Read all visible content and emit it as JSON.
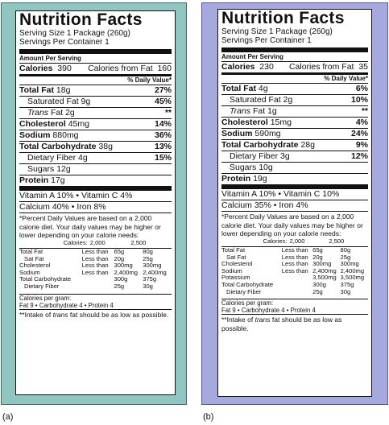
{
  "labels": [
    {
      "caption": "(a)",
      "title": "Nutrition Facts",
      "serving_size": "Serving Size 1 Package (260g)",
      "servings": "Servings Per Container 1",
      "amount_per_serving": "Amount Per Serving",
      "calories_label": "Calories",
      "calories": "390",
      "calories_fat_label": "Calories from Fat",
      "calories_fat": "160",
      "dv_header": "% Daily Value*",
      "nutrients": [
        {
          "name": "Total Fat",
          "amount": "18g",
          "dv": "27%"
        },
        {
          "name": "Saturated Fat",
          "amount": "9g",
          "dv": "45%"
        },
        {
          "name": "Trans",
          "suffix": "Fat",
          "amount": "2g",
          "dv": "**"
        },
        {
          "name": "Cholesterol",
          "amount": "45mg",
          "dv": "14%"
        },
        {
          "name": "Sodium",
          "amount": "880mg",
          "dv": "36%"
        },
        {
          "name": "Total Carbohydrate",
          "amount": "38g",
          "dv": "13%"
        },
        {
          "name": "Dietary Fiber",
          "amount": "4g",
          "dv": "15%"
        },
        {
          "name": "Sugars",
          "amount": "12g",
          "dv": ""
        },
        {
          "name": "Protein",
          "amount": "17g",
          "dv": ""
        }
      ],
      "vitamin_line": "Vitamin A  10%   •   Vitamin C  4%",
      "mineral_line": "Calcium  40%   •   Iron  8%",
      "footnote": "*Percent Daily Values are based on a 2,000 calorie diet. Your daily values may be higher or lower depending on your calorie needs:",
      "ref_header": [
        "",
        "Calories:",
        "2,000",
        "2,500"
      ],
      "ref_rows": [
        [
          "Total Fat",
          "Less than",
          "65g",
          "80g"
        ],
        [
          "Sat Fat",
          "Less than",
          "20g",
          "25g"
        ],
        [
          "Cholesterol",
          "Less than",
          "300mg",
          "300mg"
        ],
        [
          "Sodium",
          "Less than",
          "2,400mg",
          "2,400mg"
        ],
        [
          "Total Carbohydrate",
          "",
          "300g",
          "375g"
        ],
        [
          "Dietary Fiber",
          "",
          "25g",
          "30g"
        ]
      ],
      "cal_per_gram": "Calories per gram:",
      "cal_values": "Fat 9  •  Carbohydrate 4  •  Protein 4",
      "trans_note_a": "**Intake of",
      "trans_note_it": "trans",
      "trans_note_b": "fat should be as low as possible."
    },
    {
      "caption": "(b)",
      "title": "Nutrition Facts",
      "serving_size": "Serving Size 1 Package (260g)",
      "servings": "Servings Per Container 1",
      "amount_per_serving": "Amount Per Serving",
      "calories_label": "Calories",
      "calories": "230",
      "calories_fat_label": "Calories from Fat",
      "calories_fat": "35",
      "dv_header": "% Daily Value*",
      "nutrients": [
        {
          "name": "Total Fat",
          "amount": "4g",
          "dv": "6%"
        },
        {
          "name": "Saturated Fat",
          "amount": "2g",
          "dv": "10%"
        },
        {
          "name": "Trans",
          "suffix": "Fat",
          "amount": "1g",
          "dv": "**"
        },
        {
          "name": "Cholesterol",
          "amount": "15mg",
          "dv": "4%"
        },
        {
          "name": "Sodium",
          "amount": "590mg",
          "dv": "24%"
        },
        {
          "name": "Total Carbohydrate",
          "amount": "28g",
          "dv": "9%"
        },
        {
          "name": "Dietary Fiber",
          "amount": "3g",
          "dv": "12%"
        },
        {
          "name": "Sugars",
          "amount": "10g",
          "dv": ""
        },
        {
          "name": "Protein",
          "amount": "19g",
          "dv": ""
        }
      ],
      "vitamin_line": "Vitamin A  10%   •   Vitamin C  10%",
      "mineral_line": "Calcium  35%   •   Iron  4%",
      "footnote": "*Percent Daily Values are based on a 2,000 calorie diet. Your daily values may be higher or lower depending on your calorie needs:",
      "ref_header": [
        "",
        "Calories:",
        "2,000",
        "2,500"
      ],
      "ref_rows": [
        [
          "Total Fat",
          "Less than",
          "65g",
          "80g"
        ],
        [
          "Sat Fat",
          "Less than",
          "20g",
          "25g"
        ],
        [
          "Cholesterol",
          "Less than",
          "300mg",
          "300mg"
        ],
        [
          "Sodium",
          "Less than",
          "2,400mg",
          "2,400mg"
        ],
        [
          "Potassium",
          "",
          "3,500mg",
          "3,500mg"
        ],
        [
          "Total Carbohydrate",
          "",
          "300g",
          "375g"
        ],
        [
          "Dietary Fiber",
          "",
          "25g",
          "30g"
        ]
      ],
      "cal_per_gram": "Calories per gram:",
      "cal_values": "Fat 9  •  Carbohydrate 4  •  Protein 4",
      "trans_note_a": "**Intake of",
      "trans_note_it": "trans",
      "trans_note_b": "fat should be as low as possible."
    }
  ]
}
